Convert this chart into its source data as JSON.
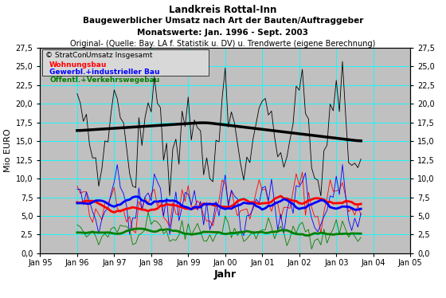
{
  "title1": "Landkreis Rottal-Inn",
  "title2": "Baugewerblicher Umsatz nach Art der Bauten/Auftraggeber",
  "title3": "Monatswerte: Jan. 1996 - Sept. 2003",
  "title4": "Original- (Quelle: Bay. LA f. Statistik u. DV) u. Trendwerte (eigene Berechnung)",
  "xlabel": "Jahr",
  "ylabel": "Mio EURO",
  "ylim": [
    0.0,
    27.5
  ],
  "yticks": [
    0.0,
    2.5,
    5.0,
    7.5,
    10.0,
    12.5,
    15.0,
    17.5,
    20.0,
    22.5,
    25.0,
    27.5
  ],
  "bg_color": "#c0c0c0",
  "grid_color": "#00ffff",
  "legend_label_total": "Umsatz Insgesamt",
  "legend_label_wohn": "Wohnungsbau",
  "legend_label_gew": "Gewerbl.+industrieller Bau",
  "legend_label_oeff": "Öffentl.+Verkehrswegebau",
  "color_total_orig": "#000000",
  "color_total_trend": "#000000",
  "color_wohn_orig": "#ff0000",
  "color_wohn_trend": "#ff0000",
  "color_gew_orig": "#0000ff",
  "color_gew_trend": "#0000ff",
  "color_oeff_orig": "#008000",
  "color_oeff_trend": "#008000",
  "copyright_text": "© StratCon",
  "x_start_year": 1995,
  "x_end_year": 2005,
  "xtick_years": [
    1995,
    1996,
    1997,
    1998,
    1999,
    2000,
    2001,
    2002,
    2003,
    2004,
    2005
  ],
  "xtick_labels": [
    "Jan 95",
    "Jan 96",
    "Jan 97",
    "Jan 98",
    "Jan 99",
    "Jan 00",
    "Jan 01",
    "Jan 02",
    "Jan 03",
    "Jan 04",
    "Jan 05"
  ]
}
